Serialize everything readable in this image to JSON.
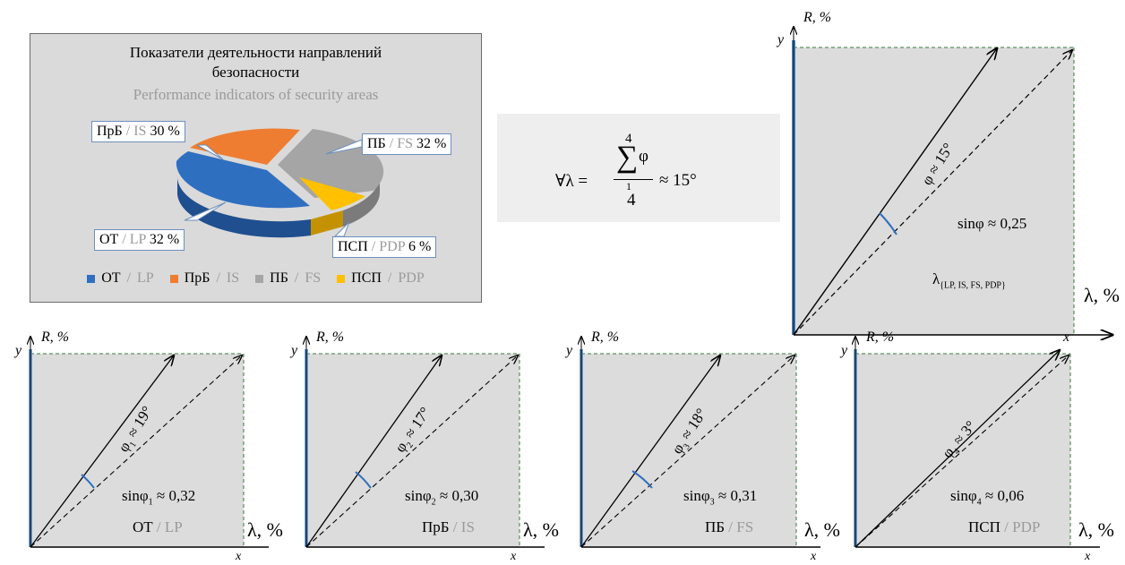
{
  "pie": {
    "title_ru_1": "Показатели деятельности направлений",
    "title_ru_2": "безопасности",
    "title_en": "Performance indicators of security areas",
    "callouts": {
      "is": {
        "ru": "ПрБ",
        "sep": " / ",
        "en": "IS",
        "val": " 30 %"
      },
      "fs": {
        "ru": "ПБ",
        "sep": " / ",
        "en": "FS",
        "val": " 32 %"
      },
      "lp": {
        "ru": "ОТ",
        "sep": " / ",
        "en": "LP",
        "val": " 32 %"
      },
      "pdp": {
        "ru": "ПСП",
        "sep": " / ",
        "en": "PDP",
        "val": " 6 %"
      }
    },
    "legend": [
      {
        "ru": "ОТ",
        "sep": " / ",
        "en": "LP",
        "color": "#2f6fc0"
      },
      {
        "ru": "ПрБ",
        "sep": " / ",
        "en": "IS",
        "color": "#ee7d31"
      },
      {
        "ru": "ПБ",
        "sep": " / ",
        "en": "FS",
        "color": "#a5a5a5"
      },
      {
        "ru": "ПСП",
        "sep": " / ",
        "en": "PDP",
        "color": "#ffc000"
      }
    ]
  },
  "formula": {
    "lhs": "∀λ =",
    "sum_upper": "4",
    "sum_sign": "∑",
    "sum_var": "φ",
    "sum_lower": "1",
    "denominator": "4",
    "rhs": "≈ 15°"
  },
  "main_plot": {
    "r_label": "R, %",
    "y_label": "y",
    "x_label": "λ, %",
    "angle_label": "φ ≈ 15°",
    "sin_label": "sinφ ≈ 0,25",
    "lambda_sub": "λ",
    "lambda_sub_text": "{LP, IS, FS, PDP}"
  },
  "small_plots": [
    {
      "r_label": "R, %",
      "y_label": "y",
      "x_label": "x",
      "lam_label": "λ, %",
      "phi": "φ",
      "idx": "1",
      "angle": " ≈ 19°",
      "sin": "sinφ",
      "sin_val": " ≈ 0,32",
      "ru": "ОТ",
      "sep": " / ",
      "en": "LP"
    },
    {
      "r_label": "R, %",
      "y_label": "y",
      "x_label": "x",
      "lam_label": "λ, %",
      "phi": "φ",
      "idx": "2",
      "angle": " ≈ 17°",
      "sin": "sinφ",
      "sin_val": " ≈ 0,30",
      "ru": "ПрБ",
      "sep": " / ",
      "en": "IS"
    },
    {
      "r_label": "R, %",
      "y_label": "y",
      "x_label": "x",
      "lam_label": "λ, %",
      "phi": "φ",
      "idx": "3",
      "angle": " ≈ 18°",
      "sin": "sinφ",
      "sin_val": " ≈ 0,31",
      "ru": "ПБ",
      "sep": " / ",
      "en": "FS"
    },
    {
      "r_label": "R, %",
      "y_label": "y",
      "x_label": "x",
      "x_top_label": "x",
      "lam_label": "λ, %",
      "phi": "φ",
      "idx": "4",
      "angle": " ≈ 3°",
      "sin": "sinφ",
      "sin_val": " ≈ 0,06",
      "ru": "ПСП",
      "sep": " / ",
      "en": "PDP"
    }
  ],
  "colors": {
    "axis_blue": "#4b86c6",
    "plot_fill": "#dcdcdc",
    "gray_text": "#9a9a9a"
  }
}
